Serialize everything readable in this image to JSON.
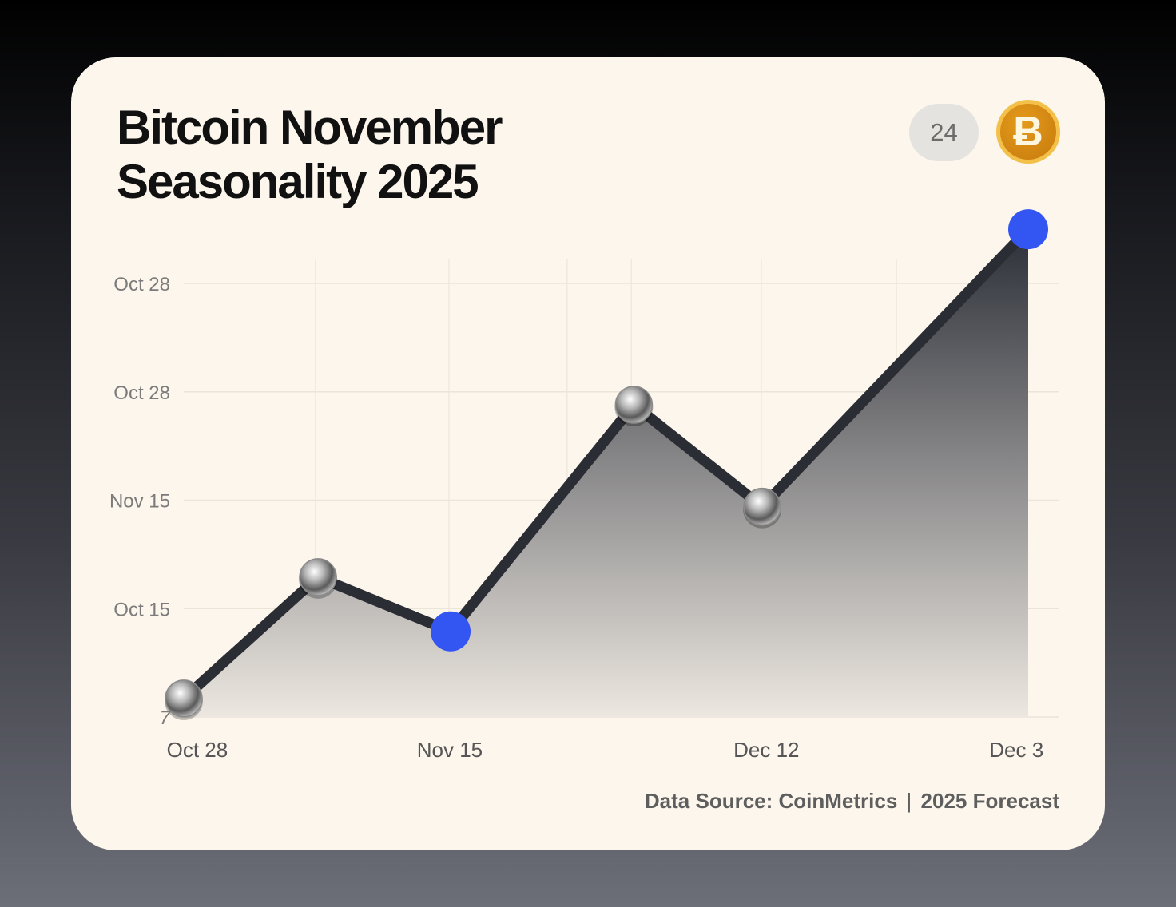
{
  "chart_data": {
    "type": "area",
    "title": "Bitcoin November Seasonality 2025",
    "badge": "24",
    "logo": "bitcoin-coin-icon",
    "y_tick_labels": [
      "7",
      "Oct 15",
      "Nov 15",
      "Oct 28",
      "Oct 28"
    ],
    "x_tick_labels": [
      {
        "label": "Oct 28",
        "x": 1.6
      },
      {
        "label": "Nov 15",
        "x": 31.5
      },
      {
        "label": "Dec 12",
        "x": 69
      },
      {
        "label": "Dec 3",
        "x": 98.6
      }
    ],
    "xlim": [
      0,
      100
    ],
    "ylim": [
      0,
      4
    ],
    "grid": true,
    "points": [
      {
        "x": 0,
        "y": 0.17,
        "style": "silver"
      },
      {
        "x": 15.9,
        "y": 1.29,
        "style": "silver"
      },
      {
        "x": 31.6,
        "y": 0.79,
        "style": "highlight"
      },
      {
        "x": 53.3,
        "y": 2.88,
        "style": "silver"
      },
      {
        "x": 68.5,
        "y": 1.94,
        "style": "silver"
      },
      {
        "x": 100,
        "y": 4.5,
        "style": "highlight"
      }
    ],
    "colors": {
      "line": "#2b2d35",
      "highlight": "#3355f2",
      "card": "#fcf6ec",
      "coin": "#d88a12"
    },
    "footer": {
      "source": "Data Source: CoinMetrics",
      "separator": "|",
      "note": "2025 Forecast"
    }
  }
}
